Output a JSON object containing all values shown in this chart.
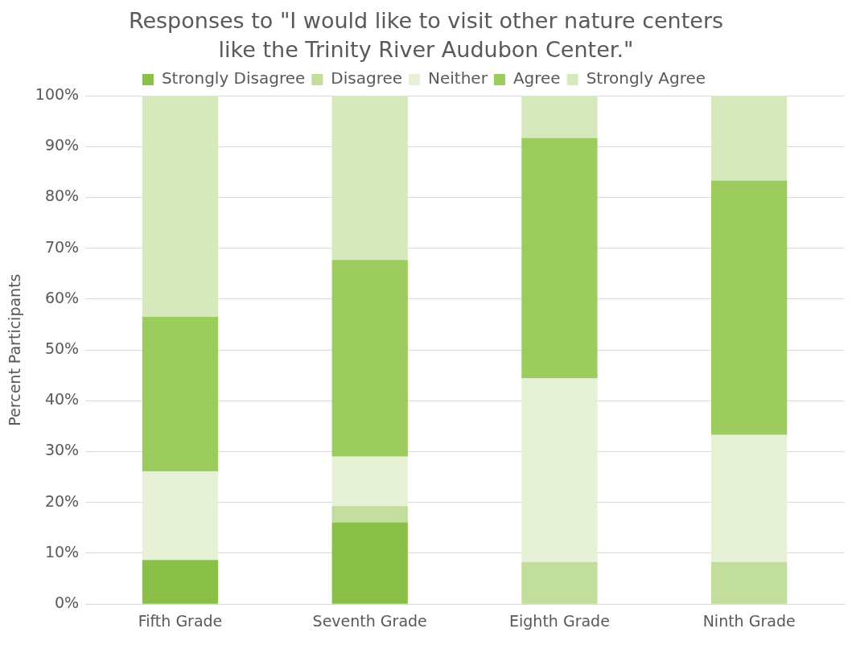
{
  "chart_data": {
    "type": "bar",
    "title": "Responses to \"I would like to visit other nature centers like the Trinity River Audubon Center.\"",
    "ylabel": "Percent Participants",
    "categories": [
      "Fifth Grade",
      "Seventh Grade",
      "Eighth Grade",
      "Ninth Grade"
    ],
    "stacked": true,
    "series": [
      {
        "name": "Strongly Disagree",
        "color": "#8bc048",
        "values": [
          8.7,
          16.1,
          0,
          0
        ]
      },
      {
        "name": "Disagree",
        "color": "#c2de9c",
        "values": [
          0,
          3.2,
          8.3,
          8.3
        ]
      },
      {
        "name": "Neither",
        "color": "#e6f1d6",
        "values": [
          17.4,
          9.7,
          36.1,
          25.0
        ]
      },
      {
        "name": "Agree",
        "color": "#9ccb5e",
        "values": [
          30.4,
          38.7,
          47.3,
          50.0
        ]
      },
      {
        "name": "Strongly Agree",
        "color": "#d6e9bd",
        "values": [
          43.5,
          32.3,
          8.3,
          16.7
        ]
      }
    ],
    "ylim": [
      0,
      100
    ],
    "yticks": [
      {
        "value": 0,
        "label": "0%"
      },
      {
        "value": 10,
        "label": "10%"
      },
      {
        "value": 20,
        "label": "20%"
      },
      {
        "value": 30,
        "label": "30%"
      },
      {
        "value": 40,
        "label": "40%"
      },
      {
        "value": 50,
        "label": "50%"
      },
      {
        "value": 60,
        "label": "60%"
      },
      {
        "value": 70,
        "label": "70%"
      },
      {
        "value": 80,
        "label": "80%"
      },
      {
        "value": 90,
        "label": "90%"
      },
      {
        "value": 100,
        "label": "100%"
      }
    ],
    "grid": "y",
    "legend": "top"
  }
}
